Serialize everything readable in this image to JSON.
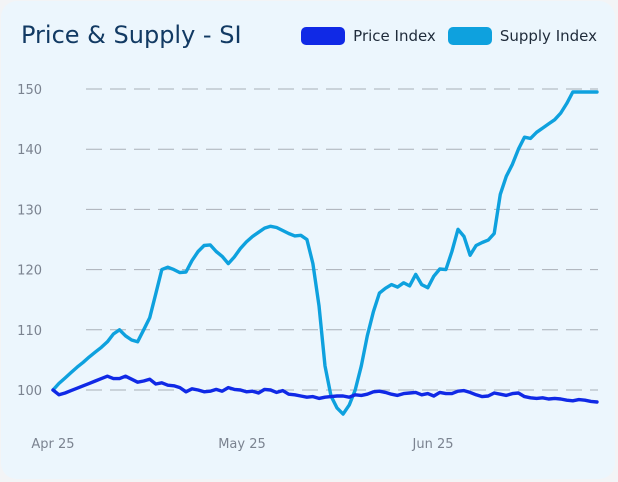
{
  "chart_data": {
    "type": "line",
    "title": "Price & Supply - SI",
    "x_ticks": [
      "Apr 25",
      "May 25",
      "Jun 25"
    ],
    "y_ticks": [
      100,
      110,
      120,
      130,
      140,
      150
    ],
    "ylim": [
      94,
      153
    ],
    "x_range": [
      0,
      90
    ],
    "grid": "horizontal dashed",
    "legend_position": "top-right",
    "series": [
      {
        "name": "Price Index",
        "color": "#1029e6",
        "x": [
          0,
          1,
          2,
          3,
          4,
          5,
          6,
          7,
          8,
          9,
          10,
          11,
          12,
          13,
          14,
          15,
          16,
          17,
          18,
          19,
          20,
          21,
          22,
          23,
          24,
          25,
          26,
          27,
          28,
          29,
          30,
          31,
          32,
          33,
          34,
          35,
          36,
          37,
          38,
          39,
          40,
          41,
          42,
          43,
          44,
          45,
          46,
          47,
          48,
          49,
          50,
          51,
          52,
          53,
          54,
          55,
          56,
          57,
          58,
          59,
          60,
          61,
          62,
          63,
          64,
          65,
          66,
          67,
          68,
          69,
          70,
          71,
          72,
          73,
          74,
          75,
          76,
          77,
          78,
          79,
          80,
          81,
          82,
          83,
          84,
          85,
          86,
          87,
          88,
          89,
          90
        ],
        "values": [
          100.0,
          99.2,
          99.5,
          99.9,
          100.3,
          100.7,
          101.1,
          101.5,
          101.9,
          102.3,
          101.9,
          101.9,
          102.3,
          101.8,
          101.3,
          101.5,
          101.8,
          101.0,
          101.2,
          100.8,
          100.7,
          100.4,
          99.7,
          100.2,
          100.0,
          99.7,
          99.8,
          100.1,
          99.8,
          100.4,
          100.1,
          100.0,
          99.7,
          99.8,
          99.5,
          100.1,
          100.0,
          99.6,
          99.9,
          99.3,
          99.2,
          99.0,
          98.8,
          98.9,
          98.6,
          98.8,
          98.9,
          99.0,
          99.0,
          98.8,
          99.2,
          99.1,
          99.3,
          99.7,
          99.8,
          99.6,
          99.3,
          99.1,
          99.4,
          99.5,
          99.6,
          99.2,
          99.4,
          99.0,
          99.6,
          99.4,
          99.4,
          99.8,
          99.9,
          99.6,
          99.2,
          98.9,
          99.0,
          99.5,
          99.3,
          99.1,
          99.4,
          99.5,
          98.9,
          98.7,
          98.6,
          98.7,
          98.5,
          98.6,
          98.5,
          98.3,
          98.2,
          98.4,
          98.3,
          98.1,
          98.0
        ]
      },
      {
        "name": "Supply Index",
        "color": "#0ea1de",
        "x": [
          0,
          1,
          2,
          3,
          4,
          5,
          6,
          7,
          8,
          9,
          10,
          11,
          12,
          13,
          14,
          15,
          16,
          17,
          18,
          19,
          20,
          21,
          22,
          23,
          24,
          25,
          26,
          27,
          28,
          29,
          30,
          31,
          32,
          33,
          34,
          35,
          36,
          37,
          38,
          39,
          40,
          41,
          42,
          43,
          44,
          45,
          46,
          47,
          48,
          49,
          50,
          51,
          52,
          53,
          54,
          55,
          56,
          57,
          58,
          59,
          60,
          61,
          62,
          63,
          64,
          65,
          66,
          67,
          68,
          69,
          70,
          71,
          72,
          73,
          74,
          75,
          76,
          77,
          78,
          79,
          80,
          81,
          82,
          83,
          84,
          85,
          86,
          87,
          88,
          89,
          90
        ],
        "values": [
          100.0,
          101.1,
          102.0,
          102.9,
          103.8,
          104.6,
          105.5,
          106.3,
          107.1,
          108.0,
          109.3,
          110.0,
          109.0,
          108.3,
          108.0,
          110.0,
          112.0,
          116.0,
          120.0,
          120.4,
          120.0,
          119.5,
          119.6,
          121.5,
          123.0,
          124.0,
          124.1,
          123.0,
          122.2,
          121.0,
          122.1,
          123.5,
          124.6,
          125.5,
          126.2,
          126.9,
          127.2,
          127.0,
          126.5,
          126.0,
          125.6,
          125.7,
          125.0,
          121.0,
          114.0,
          104.0,
          99.0,
          97.0,
          96.0,
          97.5,
          100.0,
          104.0,
          109.0,
          113.0,
          116.1,
          116.9,
          117.5,
          117.1,
          117.8,
          117.3,
          119.2,
          117.5,
          117.0,
          118.9,
          120.1,
          120.0,
          123.0,
          126.7,
          125.5,
          122.4,
          124.0,
          124.5,
          124.9,
          126.0,
          132.5,
          135.5,
          137.5,
          140.0,
          142.0,
          141.8,
          142.8,
          143.5,
          144.2,
          144.9,
          146.0,
          147.6,
          149.5,
          149.5,
          149.5,
          149.5,
          149.5
        ]
      }
    ]
  }
}
